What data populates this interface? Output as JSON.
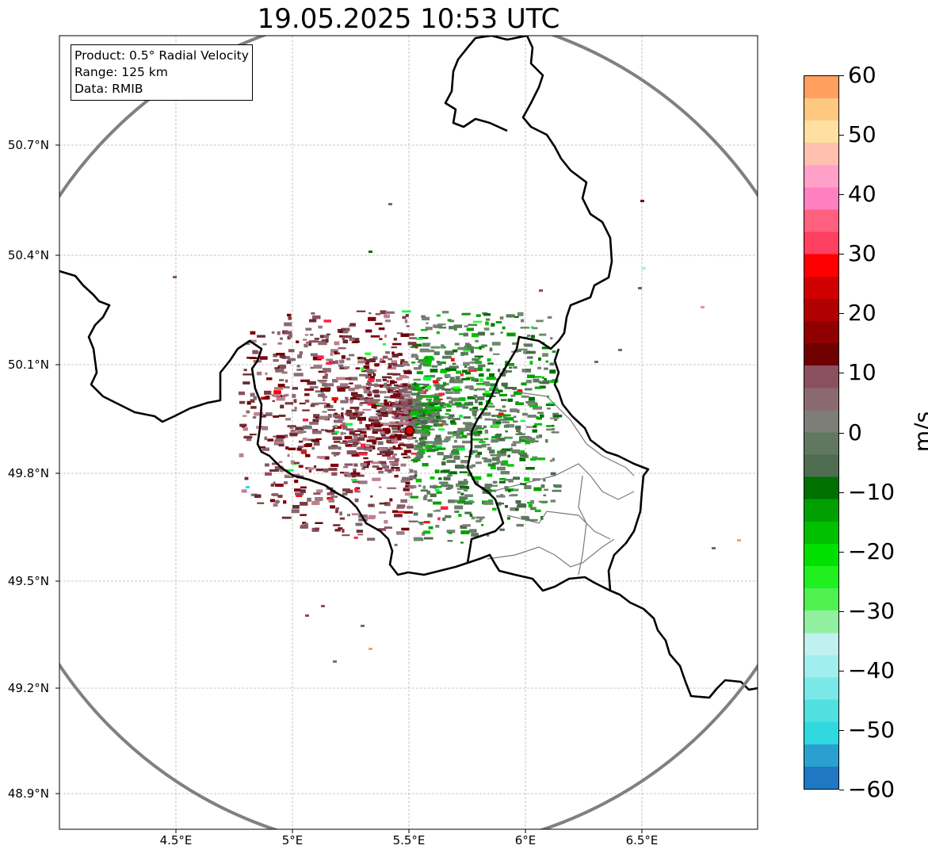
{
  "title": "19.05.2025 10:53 UTC",
  "info_box": {
    "product": "Product: 0.5° Radial Velocity",
    "range": "Range: 125 km",
    "data": "Data: RMIB"
  },
  "y_ticks": [
    "50.7°N",
    "50.4°N",
    "50.1°N",
    "49.8°N",
    "49.5°N",
    "49.2°N",
    "48.9°N"
  ],
  "x_ticks": [
    "4.5°E",
    "5°E",
    "5.5°E",
    "6°E",
    "6.5°E"
  ],
  "colorbar": {
    "unit": "m/s",
    "min": -60,
    "max": 60,
    "tick_labels": [
      "60",
      "50",
      "40",
      "30",
      "20",
      "10",
      "0",
      "−10",
      "−20",
      "−30",
      "−40",
      "−50",
      "−60"
    ],
    "colors": [
      "#1f78c1",
      "#2aa0d0",
      "#30d8e0",
      "#50e0e0",
      "#7ae8e8",
      "#a0eeee",
      "#c0f0f0",
      "#90f0a0",
      "#50f050",
      "#20f020",
      "#00e000",
      "#00c000",
      "#00a000",
      "#007000",
      "#506c50",
      "#607860",
      "#7e7e78",
      "#8a6a70",
      "#8a5060",
      "#700000",
      "#900000",
      "#b00000",
      "#d00000",
      "#ff0000",
      "#ff4060",
      "#ff6080",
      "#ff80c0",
      "#ffa0c8",
      "#ffc0b0",
      "#ffe0a0",
      "#ffc880",
      "#ffa060"
    ]
  },
  "radar_site": {
    "lon": 5.5,
    "lat": 49.91,
    "color": "#e00000"
  },
  "colors": {
    "range_ring": "#808080",
    "border": "#000000",
    "grid": "#b0b0b0"
  }
}
